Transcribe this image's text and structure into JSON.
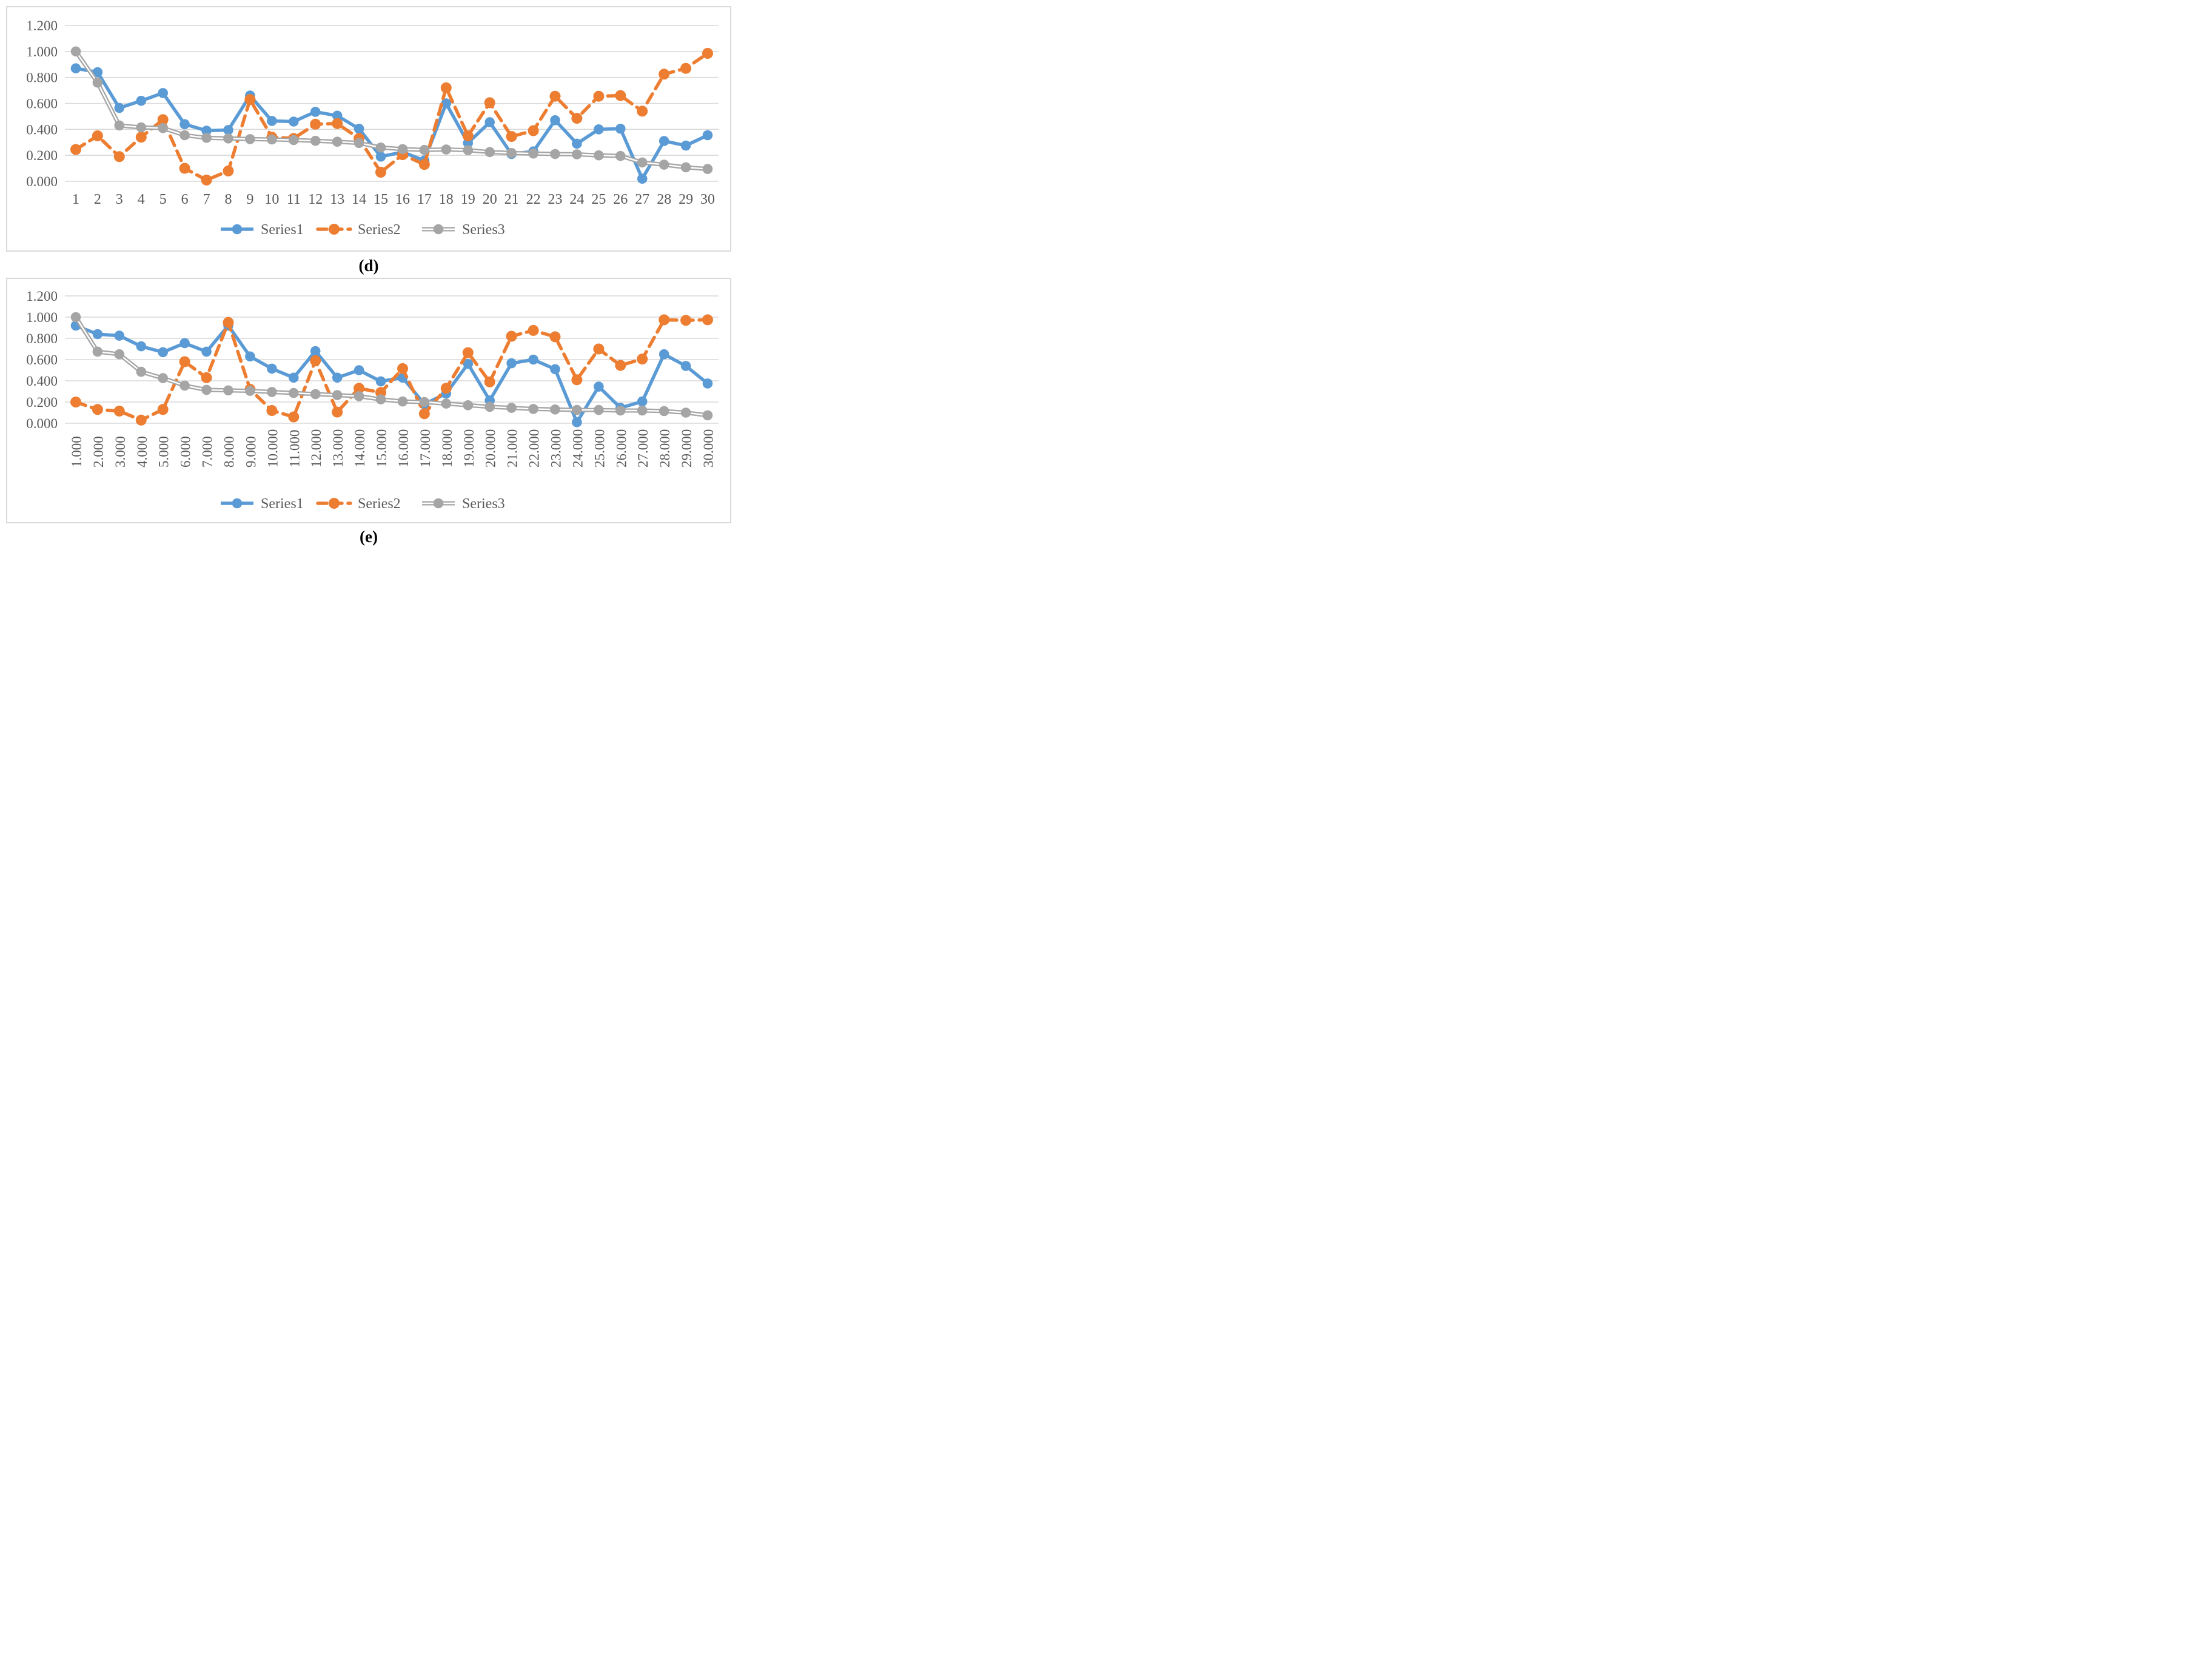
{
  "colors": {
    "series1": "#5B9BD5",
    "series2": "#ED7D31",
    "series3": "#A5A5A5",
    "gridline": "#D9D9D9",
    "panel_border": "#D9D9D9",
    "axis_text": "#595959",
    "caption_text": "#000000"
  },
  "captions": {
    "d": "(d)",
    "e": "(e)"
  },
  "chart_data": [
    {
      "id": "d",
      "type": "line",
      "title": "",
      "caption": "(d)",
      "grid": true,
      "legend_position": "bottom",
      "ylim": [
        0,
        1.2
      ],
      "y_tick_labels": [
        "1.200",
        "1.000",
        "0.800",
        "0.600",
        "0.400",
        "0.200",
        "0.000"
      ],
      "x_tick_rotation": 0,
      "x_labels": [
        "1",
        "2",
        "3",
        "4",
        "5",
        "6",
        "7",
        "8",
        "9",
        "10",
        "11",
        "12",
        "13",
        "14",
        "15",
        "16",
        "17",
        "18",
        "19",
        "20",
        "21",
        "22",
        "23",
        "24",
        "25",
        "26",
        "27",
        "28",
        "29",
        "30"
      ],
      "series": [
        {
          "name": "Series1",
          "color": "#5B9BD5",
          "line_style": "solid",
          "marker": "circle",
          "values": [
            0.87,
            0.84,
            0.565,
            0.62,
            0.68,
            0.44,
            0.39,
            0.395,
            0.66,
            0.465,
            0.46,
            0.535,
            0.505,
            0.405,
            0.19,
            0.225,
            0.16,
            0.6,
            0.295,
            0.455,
            0.21,
            0.23,
            0.47,
            0.29,
            0.4,
            0.405,
            0.02,
            0.31,
            0.275,
            0.355
          ]
        },
        {
          "name": "Series2",
          "color": "#ED7D31",
          "line_style": "dashed",
          "marker": "circle",
          "values": [
            0.245,
            0.35,
            0.19,
            0.34,
            0.475,
            0.1,
            0.01,
            0.08,
            0.63,
            0.34,
            0.33,
            0.44,
            0.445,
            0.33,
            0.07,
            0.205,
            0.13,
            0.72,
            0.35,
            0.605,
            0.345,
            0.39,
            0.655,
            0.485,
            0.655,
            0.66,
            0.54,
            0.825,
            0.87,
            0.985
          ]
        },
        {
          "name": "Series3",
          "color": "#A5A5A5",
          "line_style": "double",
          "marker": "circle",
          "values": [
            1.0,
            0.76,
            0.43,
            0.415,
            0.41,
            0.355,
            0.335,
            0.33,
            0.325,
            0.322,
            0.318,
            0.312,
            0.305,
            0.295,
            0.26,
            0.248,
            0.242,
            0.245,
            0.24,
            0.225,
            0.218,
            0.214,
            0.21,
            0.208,
            0.2,
            0.195,
            0.145,
            0.128,
            0.108,
            0.095
          ]
        }
      ]
    },
    {
      "id": "e",
      "type": "line",
      "title": "",
      "caption": "(e)",
      "grid": true,
      "legend_position": "bottom",
      "ylim": [
        0,
        1.2
      ],
      "y_tick_labels": [
        "1.200",
        "1.000",
        "0.800",
        "0.600",
        "0.400",
        "0.200",
        "0.000"
      ],
      "x_tick_rotation": 90,
      "x_labels": [
        "1.000",
        "2.000",
        "3.000",
        "4.000",
        "5.000",
        "6.000",
        "7.000",
        "8.000",
        "9.000",
        "10.000",
        "11.000",
        "12.000",
        "13.000",
        "14.000",
        "15.000",
        "16.000",
        "17.000",
        "18.000",
        "19.000",
        "20.000",
        "21.000",
        "22.000",
        "23.000",
        "24.000",
        "25.000",
        "26.000",
        "27.000",
        "28.000",
        "29.000",
        "30.000"
      ],
      "series": [
        {
          "name": "Series1",
          "color": "#5B9BD5",
          "line_style": "solid",
          "marker": "circle",
          "values": [
            0.92,
            0.84,
            0.825,
            0.725,
            0.67,
            0.755,
            0.675,
            0.92,
            0.63,
            0.515,
            0.43,
            0.68,
            0.43,
            0.5,
            0.395,
            0.43,
            0.18,
            0.28,
            0.56,
            0.215,
            0.565,
            0.6,
            0.51,
            0.01,
            0.345,
            0.145,
            0.205,
            0.65,
            0.54,
            0.375
          ]
        },
        {
          "name": "Series2",
          "color": "#ED7D31",
          "line_style": "dashed",
          "marker": "circle",
          "values": [
            0.2,
            0.13,
            0.115,
            0.03,
            0.13,
            0.58,
            0.43,
            0.95,
            0.32,
            0.12,
            0.06,
            0.59,
            0.105,
            0.33,
            0.29,
            0.515,
            0.09,
            0.33,
            0.665,
            0.39,
            0.82,
            0.875,
            0.815,
            0.41,
            0.7,
            0.545,
            0.605,
            0.975,
            0.97,
            0.975
          ]
        },
        {
          "name": "Series3",
          "color": "#A5A5A5",
          "line_style": "double",
          "marker": "circle",
          "values": [
            1.0,
            0.675,
            0.65,
            0.485,
            0.425,
            0.355,
            0.315,
            0.31,
            0.305,
            0.295,
            0.285,
            0.275,
            0.265,
            0.255,
            0.225,
            0.205,
            0.2,
            0.185,
            0.17,
            0.155,
            0.145,
            0.135,
            0.13,
            0.125,
            0.125,
            0.12,
            0.12,
            0.115,
            0.1,
            0.075
          ]
        }
      ]
    }
  ]
}
